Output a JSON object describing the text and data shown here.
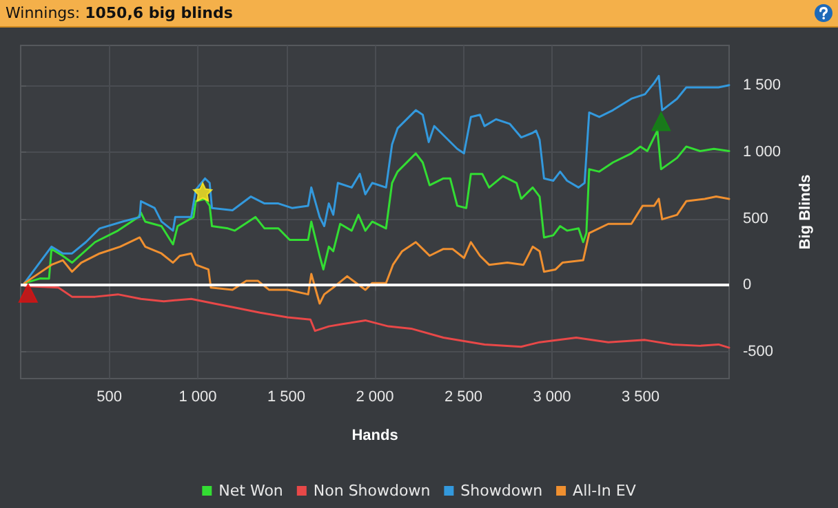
{
  "chart_data": {
    "type": "line",
    "title": "Winnings: 1050,6 big blinds",
    "xlabel": "Hands",
    "ylabel": "Big Blinds",
    "xlim": [
      0,
      4000
    ],
    "ylim": [
      -700,
      1800
    ],
    "xticks": [
      500,
      {
        "value": 1000,
        "label": "1 000"
      },
      {
        "value": 1500,
        "label": "1 500"
      },
      {
        "value": 2000,
        "label": "2 000"
      },
      {
        "value": 2500,
        "label": "2 500"
      },
      {
        "value": 3000,
        "label": "3 000"
      },
      {
        "value": 3500,
        "label": "3 500"
      }
    ],
    "yticks": [
      -500,
      0,
      500,
      {
        "value": 1000,
        "label": "1 000"
      },
      {
        "value": 1500,
        "label": "1 500"
      }
    ],
    "grid": true,
    "legend": "bottom",
    "marker": "none",
    "ref_lines": [
      {
        "axis": "y",
        "value": 0,
        "color": "#ffffff"
      }
    ],
    "series": [
      {
        "name": "Net Won",
        "color": "#33dd33",
        "x": [
          21,
          109,
          160,
          174,
          238,
          290,
          420,
          549,
          665,
          679,
          703,
          795,
          860,
          886,
          976,
          989,
          1041,
          1067,
          1080,
          1170,
          1209,
          1326,
          1377,
          1455,
          1519,
          1623,
          1641,
          1688,
          1709,
          1740,
          1765,
          1804,
          1869,
          1907,
          1946,
          1985,
          2063,
          2097,
          2128,
          2231,
          2270,
          2309,
          2387,
          2425,
          2465,
          2516,
          2542,
          2606,
          2645,
          2723,
          2800,
          2826,
          2891,
          2930,
          2955,
          3007,
          3046,
          3085,
          3150,
          3176,
          3194,
          3210,
          3267,
          3344,
          3448,
          3499,
          3538,
          3595,
          3616,
          3706,
          3758,
          3836,
          3914,
          4000
        ],
        "values": [
          16,
          51,
          50,
          273,
          221,
          170,
          324,
          410,
          512,
          546,
          478,
          444,
          307,
          444,
          512,
          631,
          648,
          597,
          444,
          427,
          410,
          512,
          427,
          427,
          341,
          341,
          478,
          222,
          119,
          290,
          256,
          461,
          410,
          529,
          410,
          478,
          427,
          768,
          853,
          990,
          922,
          751,
          802,
          802,
          597,
          580,
          836,
          836,
          734,
          819,
          768,
          649,
          734,
          666,
          359,
          375,
          444,
          410,
          427,
          324,
          393,
          871,
          853,
          922,
          990,
          1041,
          1007,
          1161,
          871,
          956,
          1041,
          1007,
          1024,
          1007
        ]
      },
      {
        "name": "Non Showdown",
        "color": "#e84848",
        "x": [
          21,
          213,
          290,
          420,
          549,
          679,
          808,
          963,
          1093,
          1222,
          1352,
          1507,
          1636,
          1662,
          1740,
          1817,
          1946,
          2076,
          2205,
          2387,
          2619,
          2826,
          2930,
          3137,
          3318,
          3525,
          3680,
          3836,
          3940,
          4000
        ],
        "values": [
          -5,
          -17,
          -86,
          -86,
          -68,
          -102,
          -120,
          -102,
          -137,
          -171,
          -205,
          -240,
          -257,
          -342,
          -308,
          -291,
          -263,
          -308,
          -325,
          -393,
          -444,
          -461,
          -427,
          -393,
          -427,
          -410,
          -444,
          -454,
          -444,
          -468
        ]
      },
      {
        "name": "Showdown",
        "color": "#3399dd",
        "x": [
          21,
          174,
          238,
          290,
          368,
          446,
          575,
          672,
          679,
          756,
          795,
          860,
          873,
          963,
          989,
          1041,
          1067,
          1080,
          1196,
          1300,
          1377,
          1455,
          1532,
          1623,
          1641,
          1688,
          1714,
          1740,
          1765,
          1791,
          1869,
          1915,
          1946,
          1985,
          2063,
          2097,
          2128,
          2231,
          2270,
          2304,
          2335,
          2361,
          2465,
          2503,
          2542,
          2593,
          2619,
          2684,
          2761,
          2826,
          2891,
          2910,
          2930,
          2955,
          3007,
          3046,
          3085,
          3150,
          3184,
          3210,
          3267,
          3344,
          3448,
          3525,
          3577,
          3603,
          3622,
          3706,
          3758,
          3862,
          3940,
          4000
        ],
        "values": [
          16,
          290,
          239,
          239,
          324,
          427,
          478,
          512,
          631,
          580,
          478,
          410,
          512,
          512,
          717,
          802,
          768,
          580,
          563,
          666,
          614,
          614,
          580,
          597,
          734,
          512,
          444,
          614,
          529,
          768,
          734,
          836,
          683,
          768,
          734,
          1058,
          1178,
          1314,
          1280,
          1075,
          1195,
          1161,
          1024,
          990,
          1263,
          1280,
          1195,
          1246,
          1212,
          1110,
          1144,
          1161,
          1092,
          802,
          785,
          853,
          785,
          734,
          768,
          1297,
          1263,
          1314,
          1400,
          1434,
          1519,
          1571,
          1314,
          1400,
          1485,
          1485,
          1485,
          1502
        ]
      },
      {
        "name": "All-In EV",
        "color": "#f09030",
        "x": [
          21,
          174,
          238,
          290,
          342,
          446,
          562,
          672,
          703,
          795,
          860,
          898,
          963,
          989,
          1060,
          1074,
          1196,
          1274,
          1339,
          1403,
          1507,
          1623,
          1641,
          1688,
          1714,
          1765,
          1843,
          1895,
          1946,
          1985,
          2063,
          2102,
          2154,
          2231,
          2283,
          2309,
          2387,
          2438,
          2503,
          2542,
          2593,
          2645,
          2748,
          2839,
          2891,
          2930,
          2955,
          3020,
          3059,
          3176,
          3210,
          3318,
          3448,
          3512,
          3577,
          3603,
          3622,
          3706,
          3758,
          3862,
          3927,
          4000
        ],
        "values": [
          16,
          154,
          188,
          102,
          170,
          239,
          290,
          359,
          290,
          239,
          170,
          221,
          239,
          154,
          119,
          -17,
          -34,
          34,
          34,
          -34,
          -34,
          -68,
          85,
          -137,
          -68,
          -17,
          68,
          17,
          -34,
          17,
          17,
          154,
          256,
          324,
          256,
          222,
          273,
          273,
          205,
          324,
          222,
          154,
          170,
          154,
          290,
          256,
          102,
          119,
          170,
          188,
          392,
          461,
          461,
          597,
          597,
          649,
          495,
          529,
          631,
          648,
          666,
          648
        ]
      },
      {
        "type": "scatter",
        "marker": "triangle",
        "color": "#dd1111",
        "x": [
          42
        ],
        "values": [
          -58
        ]
      },
      {
        "type": "scatter",
        "marker": "star",
        "color": "#ffee22",
        "x": [
          1028
        ],
        "values": [
          700
        ]
      },
      {
        "type": "scatter",
        "marker": "triangle",
        "color": "#118811",
        "x": [
          3616
        ],
        "values": [
          1229
        ]
      }
    ]
  }
}
